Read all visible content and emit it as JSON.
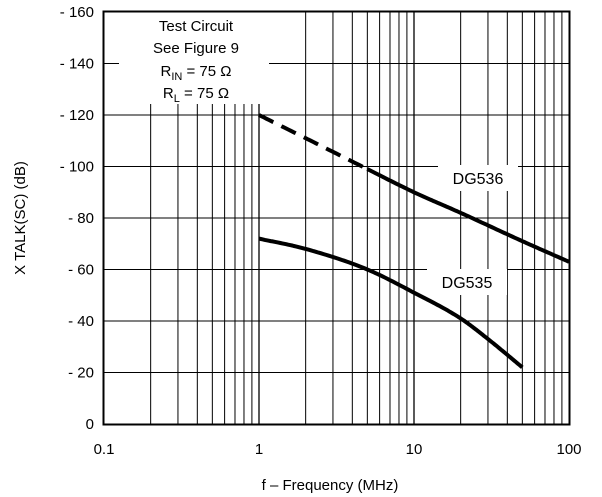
{
  "chart_data": {
    "type": "line",
    "title": "",
    "xlabel": "f – Frequency (MHz)",
    "ylabel": "X TALK(SC) (dB)",
    "xscale": "log",
    "xlim": [
      0.1,
      100
    ],
    "ylim": [
      0,
      -160
    ],
    "x_ticks": [
      0.1,
      1,
      10,
      100
    ],
    "x_tick_labels": [
      "0.1",
      "1",
      "10",
      "100"
    ],
    "y_ticks": [
      0,
      -20,
      -40,
      -60,
      -80,
      -100,
      -120,
      -140,
      -160
    ],
    "y_tick_labels": [
      "0",
      "- 20",
      "- 40",
      "- 60",
      "- 80",
      "- 100",
      "- 120",
      "- 140",
      "- 160"
    ],
    "grid": true,
    "annotation": {
      "line1": "Test Circuit",
      "line2": "See Figure 9",
      "rin_prefix": "R",
      "rin_sub": "IN",
      "rin_value": " = 75 Ω",
      "rl_prefix": "R",
      "rl_sub": "L",
      "rl_value": " = 75 Ω"
    },
    "series": [
      {
        "name": "DG536",
        "x": [
          1,
          2,
          5,
          10,
          20,
          50,
          100
        ],
        "y": [
          -120,
          -111,
          -99,
          -90,
          -82,
          -71,
          -63
        ],
        "dashed_until_x": 5
      },
      {
        "name": "DG535",
        "x": [
          1,
          2,
          5,
          10,
          20,
          30,
          50
        ],
        "y": [
          -72,
          -68,
          -60,
          -51,
          -41,
          -33,
          -22
        ]
      }
    ]
  }
}
